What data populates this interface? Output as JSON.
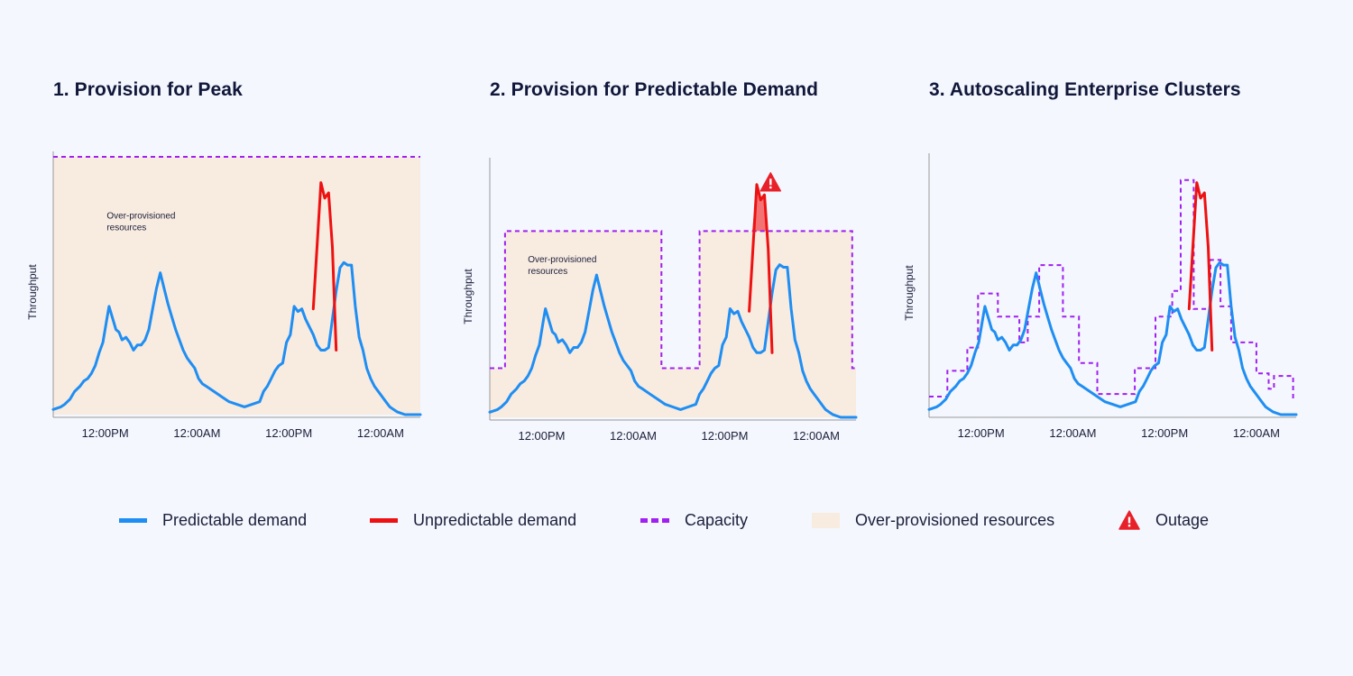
{
  "colors": {
    "predictable": "#1f8ef2",
    "unpredictable": "#ee1111",
    "capacity": "#a020f0",
    "overprovisioned": "#f8ebe0",
    "outage": "#e8202a",
    "axis": "#9a9a9a"
  },
  "titles": [
    "1. Provision for Peak",
    "2. Provision for Predictable Demand",
    "3. Autoscaling Enterprise Clusters"
  ],
  "legend": {
    "predictable": "Predictable demand",
    "unpredictable": "Unpredictable demand",
    "capacity": "Capacity",
    "overprovisioned": "Over-provisioned resources",
    "outage": "Outage",
    "outage_icon": "warning-triangle-icon"
  },
  "chart_data": [
    {
      "type": "line",
      "title": "1. Provision for Peak",
      "ylabel": "Throughput",
      "xlabel": "",
      "xlim": [
        0,
        48
      ],
      "ylim": [
        0,
        100
      ],
      "xticks": [
        6.8,
        18.8,
        30.8,
        42.8
      ],
      "xtick_labels": [
        "12:00PM",
        "12:00AM",
        "12:00PM",
        "12:00AM"
      ],
      "annotation": [
        "Over-provisioned",
        "resources"
      ],
      "series": [
        {
          "name": "Predictable demand",
          "x": [
            0,
            1,
            1.5,
            2.2,
            2.8,
            3.5,
            4,
            4.5,
            5,
            5.5,
            6,
            6.5,
            7,
            7.3,
            7.7,
            8.2,
            8.6,
            9,
            9.5,
            10,
            10.5,
            11,
            11.5,
            12,
            12.5,
            13,
            13.5,
            14,
            14.5,
            15,
            15.5,
            16,
            16.5,
            17,
            17.5,
            18,
            18.5,
            19,
            19.5,
            20,
            21,
            22,
            23,
            24,
            25,
            26,
            27,
            27.5,
            28,
            28.5,
            29,
            29.5,
            30,
            30.5,
            31,
            31.5,
            32,
            32.5,
            33,
            34,
            34.5,
            35,
            35.5,
            36,
            36.5,
            37,
            37.5,
            38,
            38.5,
            39,
            39.5,
            40,
            40.5,
            41,
            41.5,
            42,
            42.5,
            43,
            43.5,
            44,
            44.5,
            45,
            46,
            47,
            48
          ],
          "y": [
            2,
            3,
            4,
            6,
            9,
            11,
            13,
            14,
            16,
            19,
            24,
            28,
            37,
            42,
            38,
            33,
            32,
            29,
            30,
            28,
            25,
            27,
            27,
            29,
            33,
            41,
            49,
            55,
            49,
            43,
            38,
            33,
            29,
            25,
            22,
            20,
            18,
            14,
            12,
            11,
            9,
            7,
            5,
            4,
            3,
            4,
            5,
            9,
            11,
            14,
            17,
            19,
            20,
            28,
            31,
            42,
            40,
            41,
            37,
            31,
            27,
            25,
            25,
            26,
            37,
            48,
            57,
            59,
            58,
            58,
            42,
            30,
            25,
            18,
            14,
            11,
            9,
            7,
            5,
            3,
            2,
            1,
            0,
            0,
            0
          ]
        },
        {
          "name": "Unpredictable demand",
          "x": [
            34,
            35,
            35.5,
            36,
            36.5,
            37
          ],
          "y": [
            41,
            90,
            84,
            86,
            65,
            25
          ]
        }
      ],
      "capacity": {
        "x": [
          0,
          48
        ],
        "y": [
          100,
          100
        ]
      },
      "overprovisioned": "full",
      "outage": null
    },
    {
      "type": "line",
      "title": "2. Provision for Predictable Demand",
      "ylabel": "Throughput",
      "xlabel": "",
      "xlim": [
        0,
        48
      ],
      "ylim": [
        0,
        100
      ],
      "xticks": [
        6.8,
        18.8,
        30.8,
        42.8
      ],
      "xtick_labels": [
        "12:00PM",
        "12:00AM",
        "12:00PM",
        "12:00AM"
      ],
      "annotation": [
        "Over-provisioned",
        "resources"
      ],
      "series": [
        {
          "name": "Predictable demand",
          "x": [
            0,
            1,
            1.5,
            2.2,
            2.8,
            3.5,
            4,
            4.5,
            5,
            5.5,
            6,
            6.5,
            7,
            7.3,
            7.7,
            8.2,
            8.6,
            9,
            9.5,
            10,
            10.5,
            11,
            11.5,
            12,
            12.5,
            13,
            13.5,
            14,
            14.5,
            15,
            15.5,
            16,
            16.5,
            17,
            17.5,
            18,
            18.5,
            19,
            19.5,
            20,
            21,
            22,
            23,
            24,
            25,
            26,
            27,
            27.5,
            28,
            28.5,
            29,
            29.5,
            30,
            30.5,
            31,
            31.5,
            32,
            32.5,
            33,
            34,
            34.5,
            35,
            35.5,
            36,
            36.5,
            37,
            37.5,
            38,
            38.5,
            39,
            39.5,
            40,
            40.5,
            41,
            41.5,
            42,
            42.5,
            43,
            43.5,
            44,
            44.5,
            45,
            46,
            47,
            48
          ],
          "y": [
            2,
            3,
            4,
            6,
            9,
            11,
            13,
            14,
            16,
            19,
            24,
            28,
            37,
            42,
            38,
            33,
            32,
            29,
            30,
            28,
            25,
            27,
            27,
            29,
            33,
            41,
            49,
            55,
            49,
            43,
            38,
            33,
            29,
            25,
            22,
            20,
            18,
            14,
            12,
            11,
            9,
            7,
            5,
            4,
            3,
            4,
            5,
            9,
            11,
            14,
            17,
            19,
            20,
            28,
            31,
            42,
            40,
            41,
            37,
            31,
            27,
            25,
            25,
            26,
            37,
            48,
            57,
            59,
            58,
            58,
            42,
            30,
            25,
            18,
            14,
            11,
            9,
            7,
            5,
            3,
            2,
            1,
            0,
            0,
            0
          ]
        },
        {
          "name": "Unpredictable demand",
          "x": [
            34,
            35,
            35.5,
            36,
            36.5,
            37
          ],
          "y": [
            41,
            90,
            84,
            86,
            65,
            25
          ]
        }
      ],
      "capacity": {
        "x": [
          0,
          2,
          2,
          22.5,
          22.5,
          27.5,
          27.5,
          47.5,
          47.5,
          48
        ],
        "y": [
          19,
          19,
          72,
          72,
          19,
          19,
          72,
          72,
          19,
          19
        ]
      },
      "overprovisioned": "below_capacity",
      "outage": {
        "x": [
          34.4,
          36.4
        ],
        "y_top": 72
      }
    },
    {
      "type": "line",
      "title": "3. Autoscaling Enterprise Clusters",
      "ylabel": "Throughput",
      "xlabel": "",
      "xlim": [
        0,
        48
      ],
      "ylim": [
        0,
        100
      ],
      "xticks": [
        6.8,
        18.8,
        30.8,
        42.8
      ],
      "xtick_labels": [
        "12:00PM",
        "12:00AM",
        "12:00PM",
        "12:00AM"
      ],
      "annotation": null,
      "series": [
        {
          "name": "Predictable demand",
          "x": [
            0,
            1,
            1.5,
            2.2,
            2.8,
            3.5,
            4,
            4.5,
            5,
            5.5,
            6,
            6.5,
            7,
            7.3,
            7.7,
            8.2,
            8.6,
            9,
            9.5,
            10,
            10.5,
            11,
            11.5,
            12,
            12.5,
            13,
            13.5,
            14,
            14.5,
            15,
            15.5,
            16,
            16.5,
            17,
            17.5,
            18,
            18.5,
            19,
            19.5,
            20,
            21,
            22,
            23,
            24,
            25,
            26,
            27,
            27.5,
            28,
            28.5,
            29,
            29.5,
            30,
            30.5,
            31,
            31.5,
            32,
            32.5,
            33,
            34,
            34.5,
            35,
            35.5,
            36,
            36.5,
            37,
            37.5,
            38,
            38.5,
            39,
            39.5,
            40,
            40.5,
            41,
            41.5,
            42,
            42.5,
            43,
            43.5,
            44,
            44.5,
            45,
            46,
            47,
            48
          ],
          "y": [
            2,
            3,
            4,
            6,
            9,
            11,
            13,
            14,
            16,
            19,
            24,
            28,
            37,
            42,
            38,
            33,
            32,
            29,
            30,
            28,
            25,
            27,
            27,
            29,
            33,
            41,
            49,
            55,
            49,
            43,
            38,
            33,
            29,
            25,
            22,
            20,
            18,
            14,
            12,
            11,
            9,
            7,
            5,
            4,
            3,
            4,
            5,
            9,
            11,
            14,
            17,
            19,
            20,
            28,
            31,
            42,
            40,
            41,
            37,
            31,
            27,
            25,
            25,
            26,
            37,
            48,
            57,
            59,
            58,
            58,
            42,
            30,
            25,
            18,
            14,
            11,
            9,
            7,
            5,
            3,
            2,
            1,
            0,
            0,
            0
          ]
        },
        {
          "name": "Unpredictable demand",
          "x": [
            34,
            35,
            35.5,
            36,
            36.5,
            37
          ],
          "y": [
            41,
            90,
            84,
            86,
            65,
            25
          ]
        }
      ],
      "capacity": {
        "x": [
          0,
          2.4,
          2.4,
          5,
          5,
          6.4,
          6.4,
          9,
          9,
          11.8,
          11.8,
          12.9,
          12.9,
          14.4,
          14.4,
          17.5,
          17.5,
          19.6,
          19.6,
          22,
          22,
          26.9,
          26.9,
          29.6,
          29.6,
          31.8,
          31.8,
          32.9,
          32.9,
          34.6,
          34.6,
          36.8,
          36.8,
          38.1,
          38.1,
          39.5,
          39.5,
          42.8,
          42.8,
          44.4,
          44.4,
          45.1,
          45.1,
          47.6,
          47.6
        ],
        "y": [
          7,
          7,
          17,
          17,
          26,
          26,
          47,
          47,
          38,
          38,
          28,
          28,
          38,
          38,
          58,
          58,
          38,
          38,
          20,
          20,
          8,
          8,
          18,
          18,
          38,
          38,
          48,
          48,
          91,
          91,
          41,
          41,
          60,
          60,
          42,
          42,
          28,
          28,
          16,
          16,
          10,
          10,
          15,
          15,
          6
        ]
      },
      "overprovisioned": null,
      "outage": null
    }
  ]
}
